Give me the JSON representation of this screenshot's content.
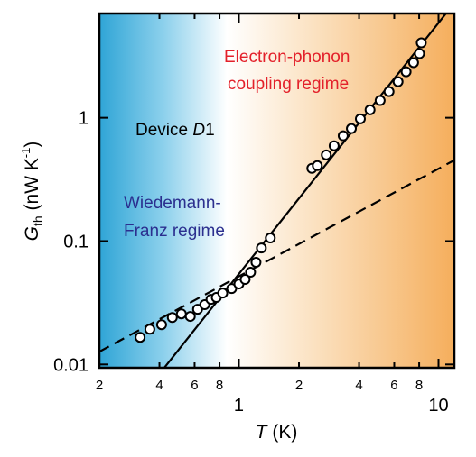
{
  "chart_data": {
    "type": "scatter",
    "x": [
      0.32,
      0.358,
      0.41,
      0.464,
      0.515,
      0.571,
      0.621,
      0.674,
      0.725,
      0.771,
      0.83,
      0.92,
      1.0,
      1.075,
      1.144,
      1.218,
      1.296,
      1.437,
      2.32,
      2.47,
      2.74,
      3.0,
      3.33,
      3.66,
      4.06,
      4.54,
      5.1,
      5.65,
      6.27,
      6.88,
      7.5,
      8.03,
      8.2
    ],
    "values": [
      0.0166,
      0.0193,
      0.021,
      0.024,
      0.0257,
      0.0245,
      0.028,
      0.0305,
      0.0337,
      0.0349,
      0.0379,
      0.0412,
      0.0449,
      0.0489,
      0.0559,
      0.0673,
      0.088,
      0.106,
      0.389,
      0.409,
      0.5,
      0.593,
      0.714,
      0.817,
      0.98,
      1.16,
      1.38,
      1.63,
      1.96,
      2.36,
      2.8,
      3.31,
      4.05
    ],
    "fits": [
      {
        "style": "solid",
        "x": [
          0.423,
          10.9
        ],
        "values": [
          0.0094,
          7
        ]
      },
      {
        "style": "dashed",
        "x": [
          0.2,
          12
        ],
        "values": [
          0.0127,
          0.453
        ]
      }
    ],
    "xlog": true,
    "ylog": true,
    "xlim": [
      0.2,
      12
    ],
    "ylim": [
      0.0094,
      7
    ],
    "xticks": [
      {
        "value": 0.2,
        "label": "2"
      },
      {
        "value": 0.4,
        "label": "4"
      },
      {
        "value": 0.6,
        "label": "6"
      },
      {
        "value": 0.8,
        "label": "8"
      },
      1,
      {
        "value": 2,
        "label": "2"
      },
      {
        "value": 4,
        "label": "4"
      },
      {
        "value": 6,
        "label": "6"
      },
      {
        "value": 8,
        "label": "8"
      },
      10
    ],
    "yticks": [
      0.01,
      0.1,
      1
    ],
    "x_label": [
      "T",
      " (K)"
    ],
    "y_label": [
      "G",
      "th",
      " (nW K",
      "-1",
      ")"
    ],
    "annotations": {
      "electron_phonon": [
        "Electron-phonon",
        "coupling regime"
      ],
      "device": [
        "Device ",
        "D",
        "1"
      ],
      "wiedemann_franz": [
        "Wiedemann-",
        "Franz regime"
      ]
    }
  }
}
